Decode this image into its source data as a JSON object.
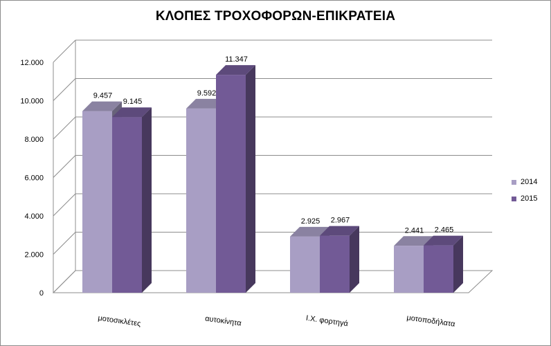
{
  "chart_data": {
    "type": "bar",
    "title": "ΚΛΟΠΕΣ ΤΡΟΧΟΦΟΡΩΝ-ΕΠΙΚΡΑΤΕΙΑ",
    "categories": [
      "μοτοσικλέτες",
      "αυτοκίνητα",
      "Ι.Χ. φορτηγά",
      "μοτοποδήλατα"
    ],
    "series": [
      {
        "name": "2014",
        "values": [
          9457,
          9592,
          2925,
          2441
        ],
        "value_labels": [
          "9.457",
          "9.592",
          "2.925",
          "2.441"
        ],
        "color": "#a89ec4"
      },
      {
        "name": "2015",
        "values": [
          9145,
          11347,
          2967,
          2465
        ],
        "value_labels": [
          "9.145",
          "11.347",
          "2.967",
          "2.465"
        ],
        "color": "#725a96"
      }
    ],
    "ylim": [
      0,
      12000
    ],
    "yticks": [
      0,
      2000,
      4000,
      6000,
      8000,
      10000,
      12000
    ],
    "ytick_labels": [
      "0",
      "2.000",
      "4.000",
      "6.000",
      "8.000",
      "10.000",
      "12.000"
    ],
    "grid": true,
    "legend_position": "right"
  }
}
